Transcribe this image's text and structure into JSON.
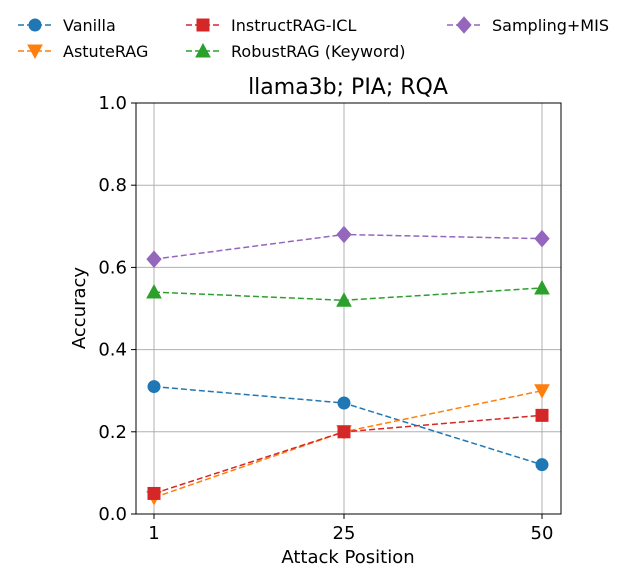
{
  "chart_data": {
    "type": "line",
    "title": "llama3b; PIA; RQA",
    "xlabel": "Attack Position",
    "ylabel": "Accuracy",
    "categories": [
      "1",
      "25",
      "50"
    ],
    "ylim": [
      0.0,
      1.0
    ],
    "yticks": [
      "0.0",
      "0.2",
      "0.4",
      "0.6",
      "0.8",
      "1.0"
    ],
    "grid": true,
    "legend_position": "top",
    "series": [
      {
        "name": "Vanilla",
        "values": [
          0.31,
          0.27,
          0.12
        ],
        "color": "#1f77b4",
        "marker": "circle"
      },
      {
        "name": "AstuteRAG",
        "values": [
          0.04,
          0.2,
          0.3
        ],
        "color": "#ff7f0e",
        "marker": "triangle-down"
      },
      {
        "name": "InstructRAG-ICL",
        "values": [
          0.05,
          0.2,
          0.24
        ],
        "color": "#d62728",
        "marker": "square"
      },
      {
        "name": "RobustRAG (Keyword)",
        "values": [
          0.54,
          0.52,
          0.55
        ],
        "color": "#2ca02c",
        "marker": "triangle-up"
      },
      {
        "name": "Sampling+MIS",
        "values": [
          0.62,
          0.68,
          0.67
        ],
        "color": "#9467bd",
        "marker": "diamond"
      }
    ]
  }
}
